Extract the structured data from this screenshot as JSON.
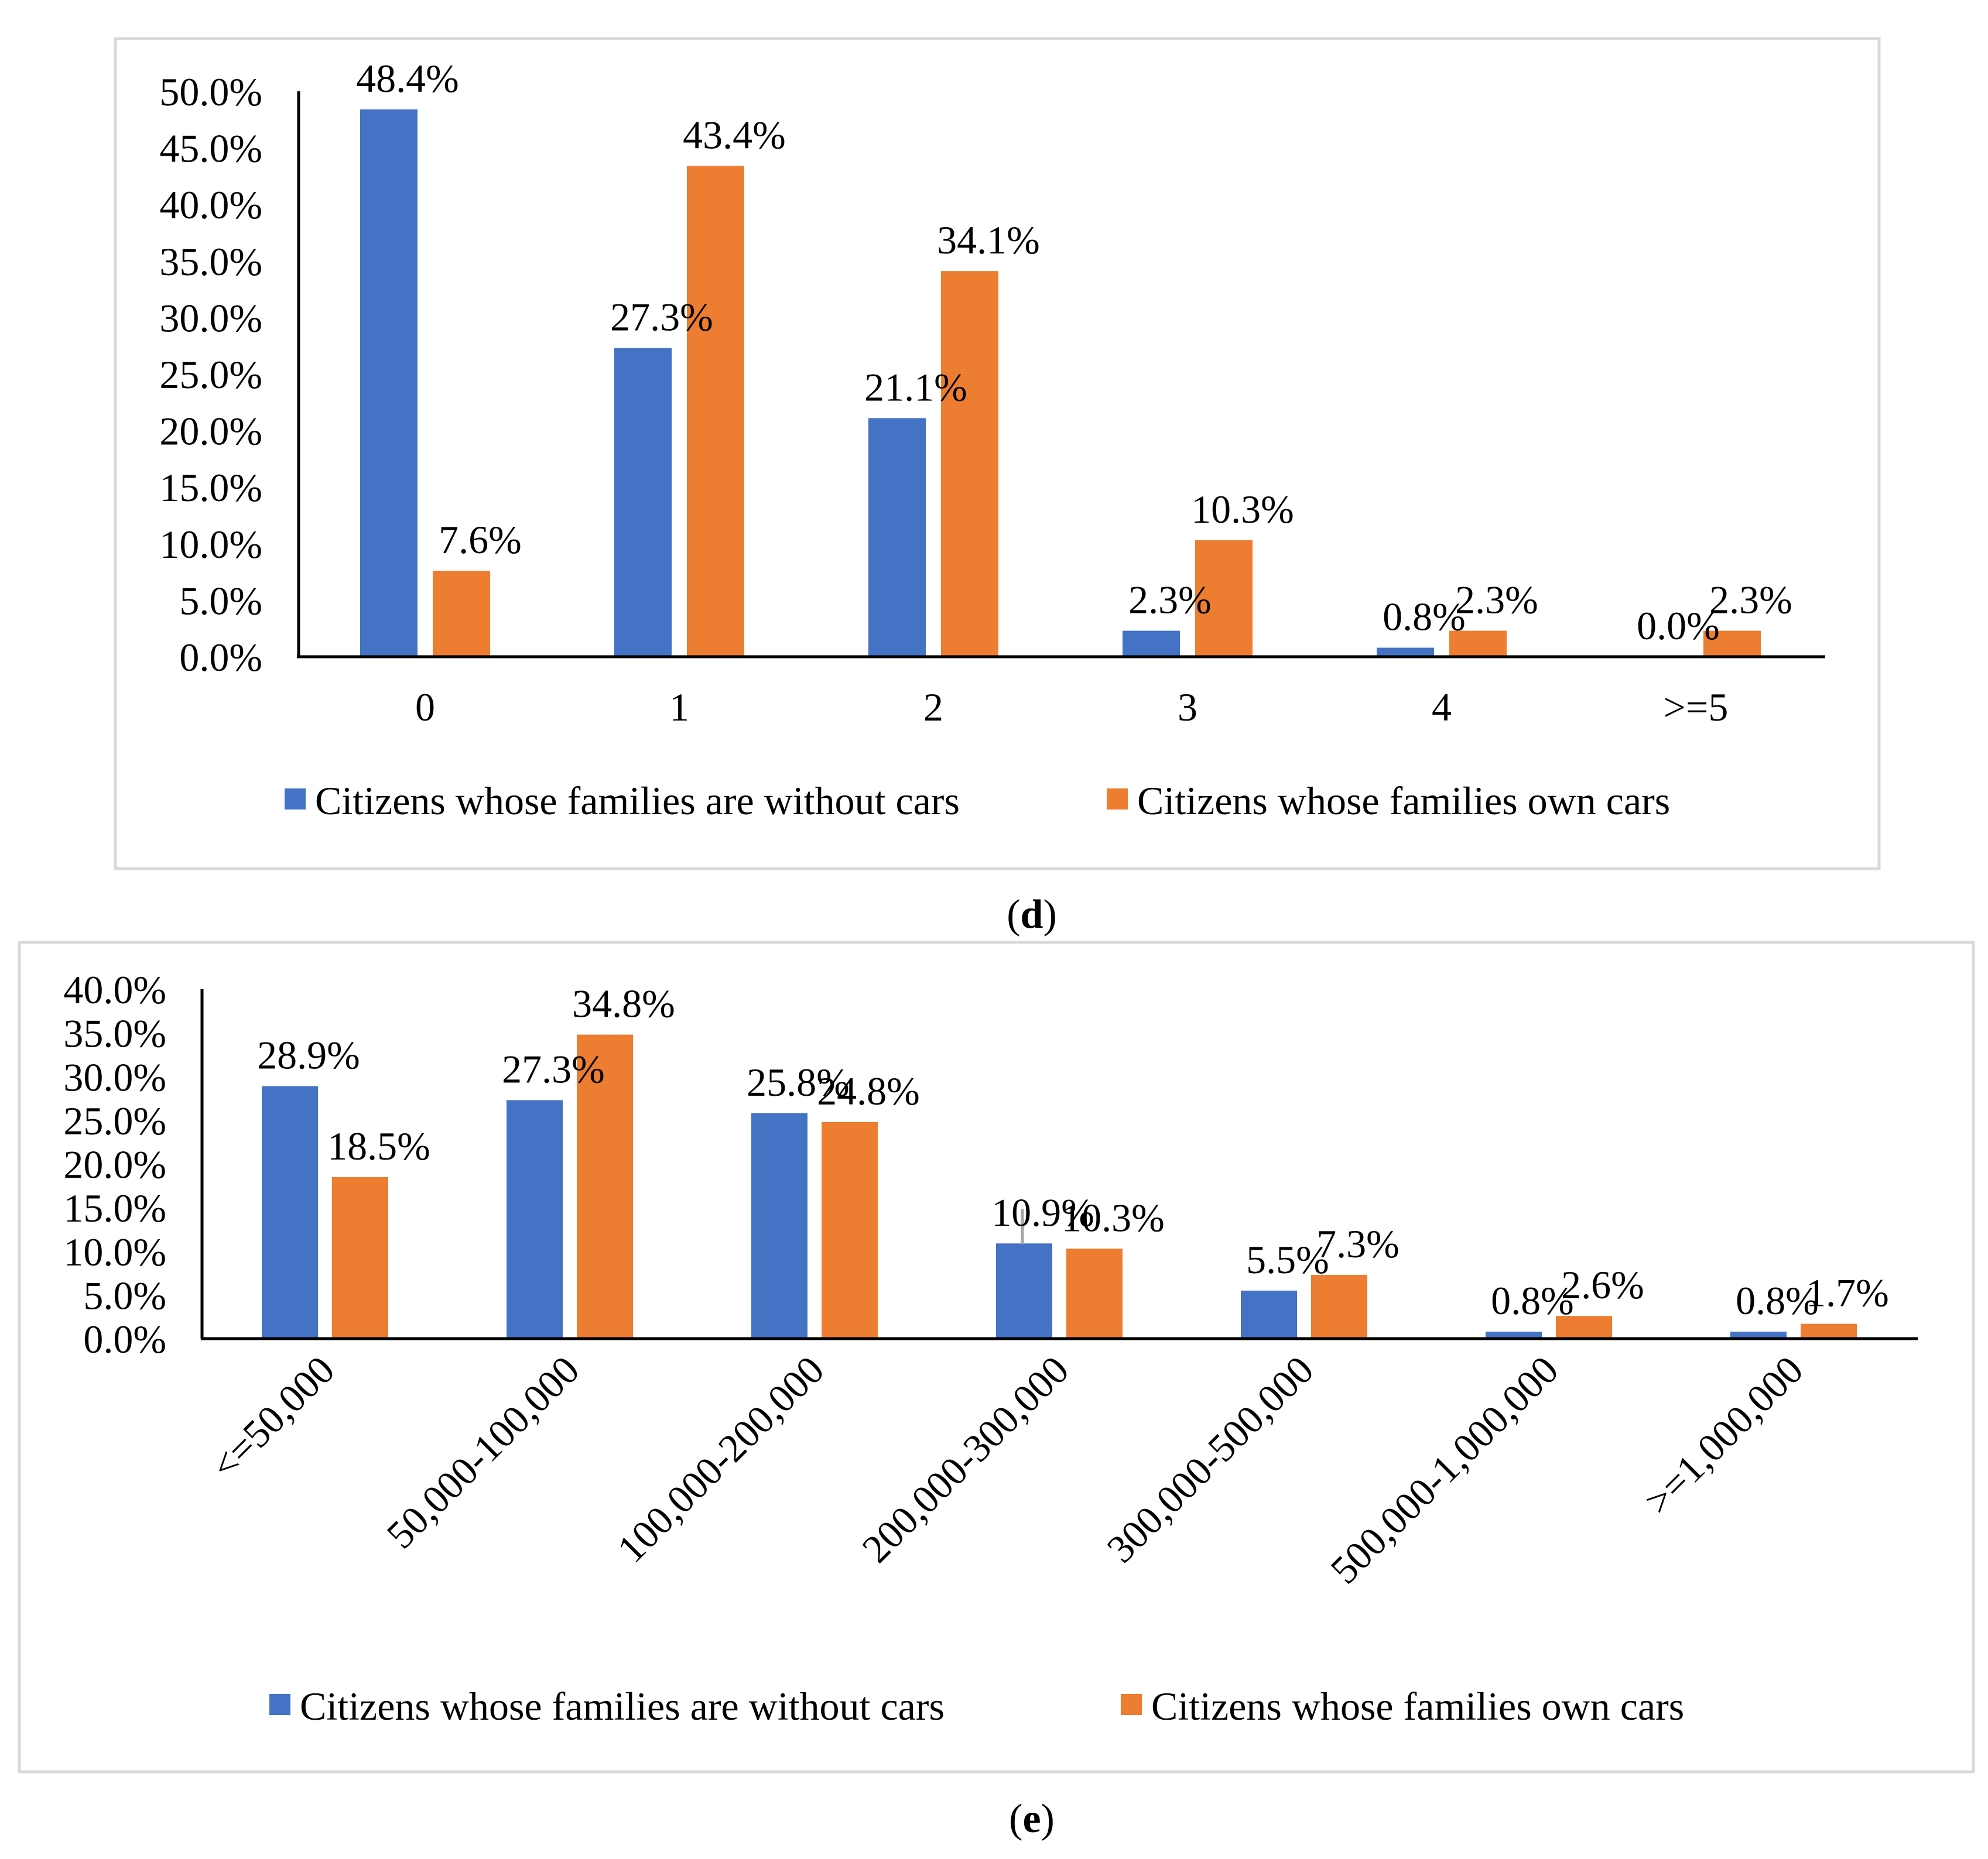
{
  "figure": {
    "panels": [
      {
        "caption_open": "(",
        "caption_letter": "d",
        "caption_close": ")"
      },
      {
        "caption_open": "(",
        "caption_letter": "e",
        "caption_close": ")"
      }
    ]
  },
  "colors": {
    "series_1": "#4472C4",
    "series_2": "#ED7D31",
    "frame": "#D9D9D9",
    "axis": "#000000"
  },
  "chart_data": [
    {
      "type": "bar",
      "panel": "d",
      "title": "",
      "xlabel": "",
      "ylabel": "",
      "ylim": [
        0,
        50
      ],
      "yticks": [
        "0.0%",
        "5.0%",
        "10.0%",
        "15.0%",
        "20.0%",
        "25.0%",
        "30.0%",
        "35.0%",
        "40.0%",
        "45.0%",
        "50.0%"
      ],
      "categories": [
        "0",
        "1",
        "2",
        "3",
        "4",
        ">=5"
      ],
      "series": [
        {
          "name": "Citizens whose families are without cars",
          "values": [
            48.4,
            27.3,
            21.1,
            2.3,
            0.8,
            0.0
          ],
          "labels": [
            "48.4%",
            "27.3%",
            "21.1%",
            "2.3%",
            "0.8%",
            "0.0%"
          ]
        },
        {
          "name": "Citizens whose families own cars",
          "values": [
            7.6,
            43.4,
            34.1,
            10.3,
            2.3,
            2.3
          ],
          "labels": [
            "7.6%",
            "43.4%",
            "34.1%",
            "10.3%",
            "2.3%",
            "2.3%"
          ]
        }
      ],
      "legend_position": "bottom",
      "grid": false
    },
    {
      "type": "bar",
      "panel": "e",
      "title": "",
      "xlabel": "",
      "ylabel": "",
      "ylim": [
        0,
        40
      ],
      "yticks": [
        "0.0%",
        "5.0%",
        "10.0%",
        "15.0%",
        "20.0%",
        "25.0%",
        "30.0%",
        "35.0%",
        "40.0%"
      ],
      "categories": [
        "<=50,000",
        "50,000-100,000",
        "100,000-200,000",
        "200,000-300,000",
        "300,000-500,000",
        "500,000-1,000,000",
        ">=1,000,000"
      ],
      "series": [
        {
          "name": "Citizens whose families are without cars",
          "values": [
            28.9,
            27.3,
            25.8,
            10.9,
            5.5,
            0.8,
            0.8
          ],
          "labels": [
            "28.9%",
            "27.3%",
            "25.8%",
            "10.9%",
            "5.5%",
            "0.8%",
            "0.8%"
          ]
        },
        {
          "name": "Citizens whose families own cars",
          "values": [
            18.5,
            34.8,
            24.8,
            10.3,
            7.3,
            2.6,
            1.7
          ],
          "labels": [
            "18.5%",
            "34.8%",
            "24.8%",
            "10.3%",
            "7.3%",
            "2.6%",
            "1.7%"
          ]
        }
      ],
      "legend_position": "bottom",
      "grid": false
    }
  ]
}
